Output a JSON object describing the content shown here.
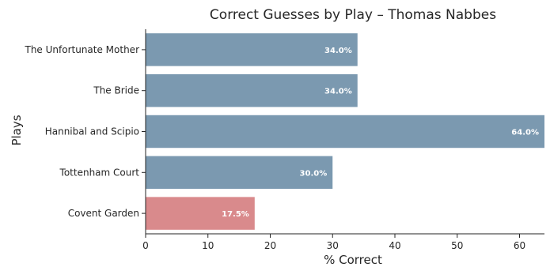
{
  "chart_data": {
    "type": "bar",
    "orientation": "horizontal",
    "title": "Correct Guesses by Play – Thomas Nabbes",
    "xlabel": "% Correct",
    "ylabel": "Plays",
    "xlim": [
      0,
      64
    ],
    "xticks": [
      0,
      10,
      20,
      30,
      40,
      50,
      60
    ],
    "categories": [
      "The Unfortunate Mother",
      "The Bride",
      "Hannibal and Scipio",
      "Tottenham Court",
      "Covent Garden"
    ],
    "values": [
      34.0,
      34.0,
      64.0,
      30.0,
      17.5
    ],
    "value_labels": [
      "34.0%",
      "34.0%",
      "64.0%",
      "30.0%",
      "17.5%"
    ],
    "colors": [
      "#7b99b0",
      "#7b99b0",
      "#7b99b0",
      "#7b99b0",
      "#d98a8c"
    ],
    "grid": false,
    "legend": "none"
  }
}
